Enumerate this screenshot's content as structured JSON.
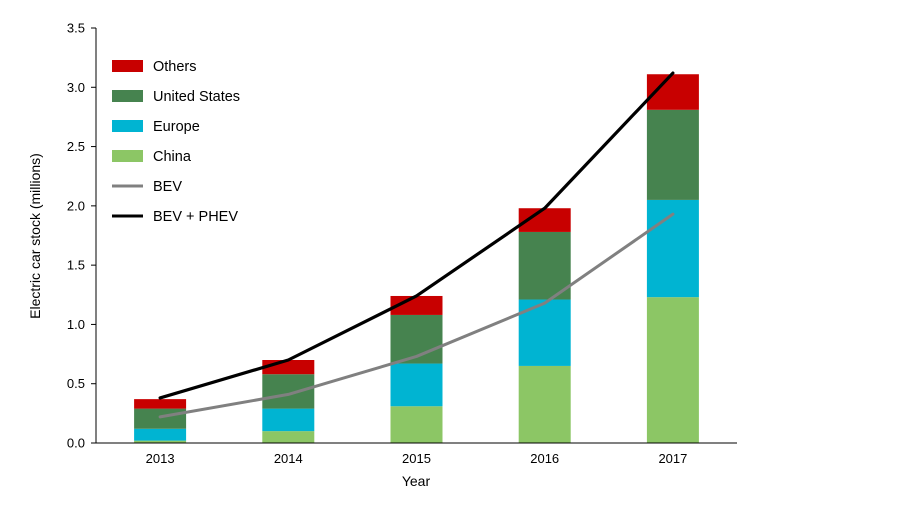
{
  "chart_data": {
    "type": "bar",
    "stacked": true,
    "title": "",
    "xlabel": "Year",
    "ylabel": "Electric car stock (millions)",
    "categories": [
      "2013",
      "2014",
      "2015",
      "2016",
      "2017"
    ],
    "ylim": [
      0,
      3.5
    ],
    "yticks": [
      "0.0",
      "0.5",
      "1.0",
      "1.5",
      "2.0",
      "2.5",
      "3.0",
      "3.5"
    ],
    "grid": false,
    "legend_position": "top-left",
    "series": [
      {
        "name": "China",
        "kind": "bar",
        "color": "#8cc665",
        "values": [
          0.02,
          0.1,
          0.31,
          0.65,
          1.23
        ]
      },
      {
        "name": "Europe",
        "kind": "bar",
        "color": "#00b4d2",
        "values": [
          0.1,
          0.19,
          0.36,
          0.56,
          0.82
        ]
      },
      {
        "name": "United States",
        "kind": "bar",
        "color": "#46834f",
        "values": [
          0.17,
          0.29,
          0.41,
          0.57,
          0.76
        ]
      },
      {
        "name": "Others",
        "kind": "bar",
        "color": "#c80000",
        "values": [
          0.08,
          0.12,
          0.16,
          0.2,
          0.3
        ]
      },
      {
        "name": "BEV",
        "kind": "line",
        "color": "#808080",
        "values": [
          0.22,
          0.41,
          0.73,
          1.18,
          1.93
        ]
      },
      {
        "name": "BEV + PHEV",
        "kind": "line",
        "color": "#000000",
        "values": [
          0.38,
          0.7,
          1.24,
          1.98,
          3.12
        ]
      }
    ],
    "legend_order": [
      "Others",
      "United States",
      "Europe",
      "China",
      "BEV",
      "BEV + PHEV"
    ]
  }
}
